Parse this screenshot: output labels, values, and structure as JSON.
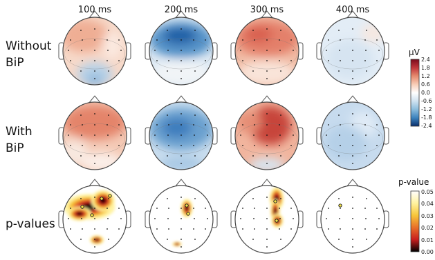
{
  "chart_data": {
    "type": "heatmap",
    "columns": [
      "100 ms",
      "200 ms",
      "300 ms",
      "400 ms"
    ],
    "row_labels": [
      [
        "Without",
        "BiP"
      ],
      [
        "With",
        "BiP"
      ],
      [
        "p-values"
      ]
    ],
    "colorbars": [
      {
        "label": "μV",
        "range": [
          -2.4,
          2.4
        ],
        "ticks": [
          "2.4",
          "1.8",
          "1.2",
          "0.6",
          "0.0",
          "-0.6",
          "-1.2",
          "-1.8",
          "-2.4"
        ],
        "colormap": [
          "#8b0a1f",
          "#d6604d",
          "#f4a582",
          "#fddbc7",
          "#ffffff",
          "#d1e5f0",
          "#92c5de",
          "#4393c3",
          "#08306b"
        ]
      },
      {
        "label": "p-value",
        "range": [
          0.0,
          0.05
        ],
        "ticks": [
          "0.05",
          "0.04",
          "0.03",
          "0.02",
          "0.01",
          "0.00"
        ],
        "colormap": [
          "#ffffff",
          "#fff3a0",
          "#f7c63a",
          "#e8702a",
          "#c81e1e",
          "#000000"
        ]
      }
    ]
  }
}
